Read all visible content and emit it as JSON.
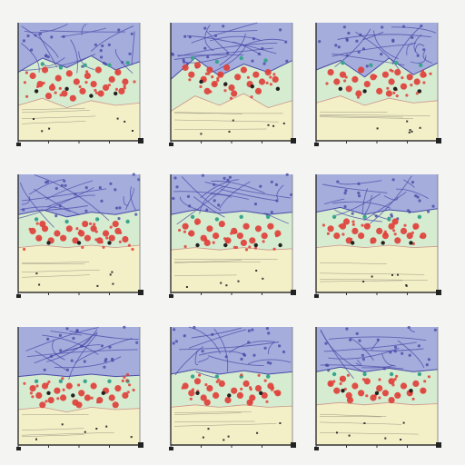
{
  "colors": {
    "background": "#f4f5f3",
    "band_blue": "#9fa6dd",
    "band_green": "#d6ecd0",
    "band_cream": "#f3efc6",
    "line_purple": "#4a4aa8",
    "dot_red": "#e0403a",
    "dot_teal": "#3aa58e",
    "dot_black": "#222222",
    "axis": "#333333"
  },
  "chart_data": [
    {
      "type": "scatter",
      "panel": 1,
      "bands": {
        "boundary_upper": [
          0.42,
          0.3,
          0.38,
          0.28,
          0.4,
          0.33
        ],
        "boundary_lower": [
          0.7,
          0.64,
          0.72,
          0.66,
          0.7,
          0.68
        ]
      },
      "red_points": [
        [
          0.12,
          0.45
        ],
        [
          0.18,
          0.52
        ],
        [
          0.22,
          0.4
        ],
        [
          0.28,
          0.55
        ],
        [
          0.33,
          0.47
        ],
        [
          0.38,
          0.6
        ],
        [
          0.42,
          0.43
        ],
        [
          0.48,
          0.5
        ],
        [
          0.53,
          0.58
        ],
        [
          0.57,
          0.45
        ],
        [
          0.62,
          0.52
        ],
        [
          0.66,
          0.4
        ],
        [
          0.72,
          0.55
        ],
        [
          0.77,
          0.48
        ],
        [
          0.82,
          0.42
        ],
        [
          0.88,
          0.5
        ],
        [
          0.25,
          0.62
        ],
        [
          0.45,
          0.64
        ],
        [
          0.68,
          0.6
        ],
        [
          0.85,
          0.58
        ]
      ],
      "teal_points": [
        [
          0.2,
          0.35
        ],
        [
          0.35,
          0.38
        ],
        [
          0.55,
          0.36
        ],
        [
          0.75,
          0.36
        ],
        [
          0.9,
          0.34
        ]
      ],
      "black_points": [
        [
          0.15,
          0.58
        ],
        [
          0.4,
          0.56
        ],
        [
          0.6,
          0.62
        ],
        [
          0.8,
          0.6
        ]
      ]
    },
    {
      "type": "scatter",
      "panel": 2,
      "bands": {
        "boundary_upper": [
          0.48,
          0.3,
          0.45,
          0.35,
          0.42,
          0.32
        ],
        "boundary_lower": [
          0.75,
          0.62,
          0.7,
          0.6,
          0.72,
          0.66
        ]
      },
      "red_points": [
        [
          0.12,
          0.38
        ],
        [
          0.17,
          0.44
        ],
        [
          0.22,
          0.36
        ],
        [
          0.27,
          0.48
        ],
        [
          0.32,
          0.4
        ],
        [
          0.36,
          0.52
        ],
        [
          0.41,
          0.44
        ],
        [
          0.46,
          0.38
        ],
        [
          0.5,
          0.55
        ],
        [
          0.55,
          0.46
        ],
        [
          0.6,
          0.4
        ],
        [
          0.65,
          0.52
        ],
        [
          0.7,
          0.44
        ],
        [
          0.75,
          0.5
        ],
        [
          0.8,
          0.42
        ],
        [
          0.86,
          0.48
        ],
        [
          0.3,
          0.58
        ],
        [
          0.52,
          0.6
        ],
        [
          0.72,
          0.58
        ]
      ],
      "teal_points": [
        [
          0.18,
          0.3
        ],
        [
          0.38,
          0.33
        ],
        [
          0.58,
          0.3
        ],
        [
          0.78,
          0.32
        ]
      ],
      "black_points": [
        [
          0.25,
          0.5
        ],
        [
          0.45,
          0.52
        ],
        [
          0.67,
          0.54
        ],
        [
          0.88,
          0.56
        ]
      ]
    },
    {
      "type": "scatter",
      "panel": 3,
      "bands": {
        "boundary_upper": [
          0.4,
          0.32,
          0.46,
          0.3,
          0.44,
          0.34
        ],
        "boundary_lower": [
          0.68,
          0.62,
          0.7,
          0.64,
          0.68,
          0.66
        ]
      },
      "red_points": [
        [
          0.12,
          0.42
        ],
        [
          0.17,
          0.5
        ],
        [
          0.22,
          0.44
        ],
        [
          0.27,
          0.56
        ],
        [
          0.32,
          0.48
        ],
        [
          0.37,
          0.4
        ],
        [
          0.42,
          0.52
        ],
        [
          0.47,
          0.46
        ],
        [
          0.52,
          0.58
        ],
        [
          0.57,
          0.44
        ],
        [
          0.62,
          0.5
        ],
        [
          0.67,
          0.42
        ],
        [
          0.72,
          0.54
        ],
        [
          0.77,
          0.46
        ],
        [
          0.83,
          0.5
        ],
        [
          0.88,
          0.44
        ],
        [
          0.35,
          0.6
        ],
        [
          0.6,
          0.6
        ]
      ],
      "teal_points": [
        [
          0.22,
          0.34
        ],
        [
          0.45,
          0.36
        ],
        [
          0.66,
          0.34
        ],
        [
          0.86,
          0.36
        ]
      ],
      "black_points": [
        [
          0.2,
          0.56
        ],
        [
          0.4,
          0.58
        ],
        [
          0.65,
          0.56
        ],
        [
          0.85,
          0.58
        ]
      ]
    },
    {
      "type": "scatter",
      "panel": 4,
      "bands": {
        "boundary_upper": [
          0.34,
          0.3,
          0.36,
          0.32,
          0.34,
          0.3
        ],
        "boundary_lower": [
          0.62,
          0.6,
          0.62,
          0.6,
          0.62,
          0.6
        ]
      },
      "red_points": [
        [
          0.12,
          0.48
        ],
        [
          0.17,
          0.54
        ],
        [
          0.22,
          0.46
        ],
        [
          0.27,
          0.56
        ],
        [
          0.32,
          0.5
        ],
        [
          0.37,
          0.54
        ],
        [
          0.42,
          0.46
        ],
        [
          0.47,
          0.56
        ],
        [
          0.52,
          0.5
        ],
        [
          0.57,
          0.54
        ],
        [
          0.62,
          0.46
        ],
        [
          0.67,
          0.56
        ],
        [
          0.72,
          0.5
        ],
        [
          0.77,
          0.54
        ],
        [
          0.82,
          0.48
        ],
        [
          0.88,
          0.55
        ],
        [
          0.2,
          0.42
        ],
        [
          0.55,
          0.42
        ],
        [
          0.8,
          0.42
        ]
      ],
      "teal_points": [
        [
          0.15,
          0.38
        ],
        [
          0.4,
          0.4
        ],
        [
          0.65,
          0.38
        ],
        [
          0.9,
          0.4
        ]
      ],
      "black_points": [
        [
          0.25,
          0.58
        ],
        [
          0.5,
          0.58
        ],
        [
          0.75,
          0.58
        ]
      ]
    },
    {
      "type": "scatter",
      "panel": 5,
      "bands": {
        "boundary_upper": [
          0.34,
          0.3,
          0.33,
          0.31,
          0.34,
          0.32
        ],
        "boundary_lower": [
          0.64,
          0.62,
          0.64,
          0.62,
          0.64,
          0.63
        ]
      },
      "red_points": [
        [
          0.12,
          0.44
        ],
        [
          0.17,
          0.5
        ],
        [
          0.22,
          0.4
        ],
        [
          0.27,
          0.54
        ],
        [
          0.32,
          0.46
        ],
        [
          0.37,
          0.52
        ],
        [
          0.42,
          0.42
        ],
        [
          0.47,
          0.56
        ],
        [
          0.52,
          0.48
        ],
        [
          0.57,
          0.52
        ],
        [
          0.62,
          0.44
        ],
        [
          0.67,
          0.56
        ],
        [
          0.72,
          0.46
        ],
        [
          0.77,
          0.52
        ],
        [
          0.82,
          0.44
        ],
        [
          0.88,
          0.5
        ],
        [
          0.3,
          0.58
        ],
        [
          0.6,
          0.58
        ]
      ],
      "teal_points": [
        [
          0.18,
          0.36
        ],
        [
          0.38,
          0.38
        ],
        [
          0.58,
          0.36
        ],
        [
          0.8,
          0.36
        ]
      ],
      "black_points": [
        [
          0.22,
          0.6
        ],
        [
          0.45,
          0.6
        ],
        [
          0.7,
          0.6
        ],
        [
          0.9,
          0.6
        ]
      ]
    },
    {
      "type": "scatter",
      "panel": 6,
      "bands": {
        "boundary_upper": [
          0.32,
          0.28,
          0.34,
          0.3,
          0.32,
          0.29
        ],
        "boundary_lower": [
          0.62,
          0.6,
          0.62,
          0.6,
          0.62,
          0.61
        ]
      },
      "red_points": [
        [
          0.12,
          0.46
        ],
        [
          0.17,
          0.52
        ],
        [
          0.22,
          0.44
        ],
        [
          0.27,
          0.56
        ],
        [
          0.32,
          0.48
        ],
        [
          0.37,
          0.52
        ],
        [
          0.42,
          0.44
        ],
        [
          0.47,
          0.56
        ],
        [
          0.52,
          0.48
        ],
        [
          0.57,
          0.52
        ],
        [
          0.62,
          0.44
        ],
        [
          0.67,
          0.56
        ],
        [
          0.72,
          0.48
        ],
        [
          0.77,
          0.52
        ],
        [
          0.82,
          0.44
        ],
        [
          0.88,
          0.52
        ],
        [
          0.25,
          0.4
        ],
        [
          0.65,
          0.4
        ]
      ],
      "teal_points": [
        [
          0.15,
          0.36
        ],
        [
          0.4,
          0.36
        ],
        [
          0.6,
          0.38
        ],
        [
          0.85,
          0.36
        ]
      ],
      "black_points": [
        [
          0.3,
          0.58
        ],
        [
          0.55,
          0.58
        ],
        [
          0.78,
          0.58
        ]
      ]
    },
    {
      "type": "scatter",
      "panel": 7,
      "bands": {
        "boundary_upper": [
          0.42,
          0.4,
          0.42,
          0.4,
          0.42,
          0.41
        ],
        "boundary_lower": [
          0.7,
          0.68,
          0.72,
          0.68,
          0.7,
          0.69
        ]
      },
      "red_points": [
        [
          0.12,
          0.52
        ],
        [
          0.17,
          0.58
        ],
        [
          0.22,
          0.5
        ],
        [
          0.27,
          0.62
        ],
        [
          0.32,
          0.54
        ],
        [
          0.37,
          0.6
        ],
        [
          0.42,
          0.5
        ],
        [
          0.47,
          0.64
        ],
        [
          0.52,
          0.56
        ],
        [
          0.57,
          0.6
        ],
        [
          0.62,
          0.5
        ],
        [
          0.67,
          0.62
        ],
        [
          0.72,
          0.54
        ],
        [
          0.77,
          0.6
        ],
        [
          0.82,
          0.52
        ],
        [
          0.88,
          0.58
        ],
        [
          0.2,
          0.66
        ],
        [
          0.5,
          0.66
        ],
        [
          0.8,
          0.66
        ]
      ],
      "teal_points": [
        [
          0.15,
          0.46
        ],
        [
          0.35,
          0.46
        ],
        [
          0.55,
          0.46
        ],
        [
          0.75,
          0.46
        ],
        [
          0.9,
          0.46
        ]
      ],
      "black_points": [
        [
          0.25,
          0.56
        ],
        [
          0.45,
          0.58
        ],
        [
          0.7,
          0.56
        ]
      ]
    },
    {
      "type": "scatter",
      "panel": 8,
      "bands": {
        "boundary_upper": [
          0.4,
          0.36,
          0.4,
          0.37,
          0.4,
          0.38
        ],
        "boundary_lower": [
          0.68,
          0.66,
          0.68,
          0.66,
          0.68,
          0.67
        ]
      },
      "red_points": [
        [
          0.12,
          0.5
        ],
        [
          0.17,
          0.56
        ],
        [
          0.22,
          0.46
        ],
        [
          0.27,
          0.6
        ],
        [
          0.32,
          0.52
        ],
        [
          0.37,
          0.58
        ],
        [
          0.42,
          0.48
        ],
        [
          0.47,
          0.62
        ],
        [
          0.52,
          0.54
        ],
        [
          0.57,
          0.58
        ],
        [
          0.62,
          0.48
        ],
        [
          0.67,
          0.6
        ],
        [
          0.72,
          0.52
        ],
        [
          0.77,
          0.58
        ],
        [
          0.82,
          0.5
        ],
        [
          0.88,
          0.56
        ],
        [
          0.3,
          0.64
        ],
        [
          0.65,
          0.64
        ]
      ],
      "teal_points": [
        [
          0.18,
          0.42
        ],
        [
          0.38,
          0.42
        ],
        [
          0.58,
          0.42
        ],
        [
          0.8,
          0.42
        ]
      ],
      "black_points": [
        [
          0.22,
          0.56
        ],
        [
          0.48,
          0.58
        ],
        [
          0.74,
          0.56
        ]
      ]
    },
    {
      "type": "scatter",
      "panel": 9,
      "bands": {
        "boundary_upper": [
          0.38,
          0.34,
          0.38,
          0.35,
          0.38,
          0.36
        ],
        "boundary_lower": [
          0.66,
          0.64,
          0.66,
          0.64,
          0.66,
          0.65
        ]
      },
      "red_points": [
        [
          0.12,
          0.48
        ],
        [
          0.17,
          0.54
        ],
        [
          0.22,
          0.44
        ],
        [
          0.27,
          0.58
        ],
        [
          0.32,
          0.5
        ],
        [
          0.37,
          0.56
        ],
        [
          0.42,
          0.46
        ],
        [
          0.47,
          0.6
        ],
        [
          0.52,
          0.52
        ],
        [
          0.57,
          0.56
        ],
        [
          0.62,
          0.46
        ],
        [
          0.67,
          0.58
        ],
        [
          0.72,
          0.5
        ],
        [
          0.77,
          0.56
        ],
        [
          0.82,
          0.48
        ],
        [
          0.88,
          0.54
        ],
        [
          0.28,
          0.62
        ],
        [
          0.62,
          0.62
        ]
      ],
      "teal_points": [
        [
          0.15,
          0.4
        ],
        [
          0.4,
          0.4
        ],
        [
          0.62,
          0.4
        ],
        [
          0.85,
          0.4
        ]
      ],
      "black_points": [
        [
          0.22,
          0.54
        ],
        [
          0.5,
          0.56
        ],
        [
          0.78,
          0.54
        ]
      ]
    }
  ]
}
